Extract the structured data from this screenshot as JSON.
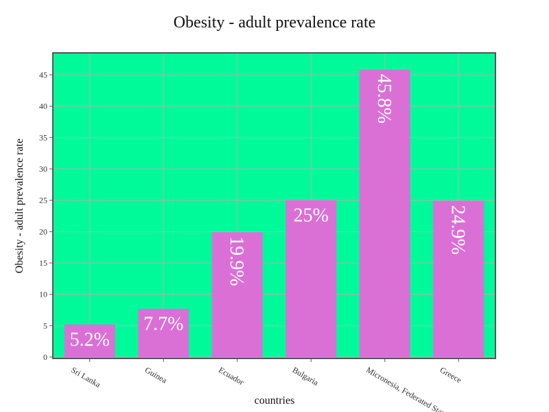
{
  "chart_data": {
    "type": "bar",
    "title": "Obesity - adult prevalence rate",
    "xlabel": "countries",
    "ylabel": "Obesity - adult prevalence rate",
    "categories": [
      "Sri Lanka",
      "Guinea",
      "Ecuador",
      "Bulgaria",
      "Micronesia, Federated States of",
      "Greece"
    ],
    "values": [
      5.2,
      7.7,
      19.9,
      25,
      45.8,
      24.9
    ],
    "data_labels": [
      "5.2%",
      "7.7%",
      "19.9%",
      "25%",
      "45.8%",
      "24.9%"
    ],
    "label_rotated": [
      false,
      false,
      true,
      false,
      true,
      true
    ],
    "ylim": [
      0,
      48.5
    ],
    "yticks": [
      0,
      5,
      10,
      15,
      20,
      25,
      30,
      35,
      40,
      45
    ],
    "grid": true,
    "legend": "none",
    "colors": {
      "plot_background": "#00fa9a",
      "bar": "#da70d6",
      "grid": "#b0b0b0",
      "axis": "#555555",
      "label_text": "#ffffff"
    }
  }
}
